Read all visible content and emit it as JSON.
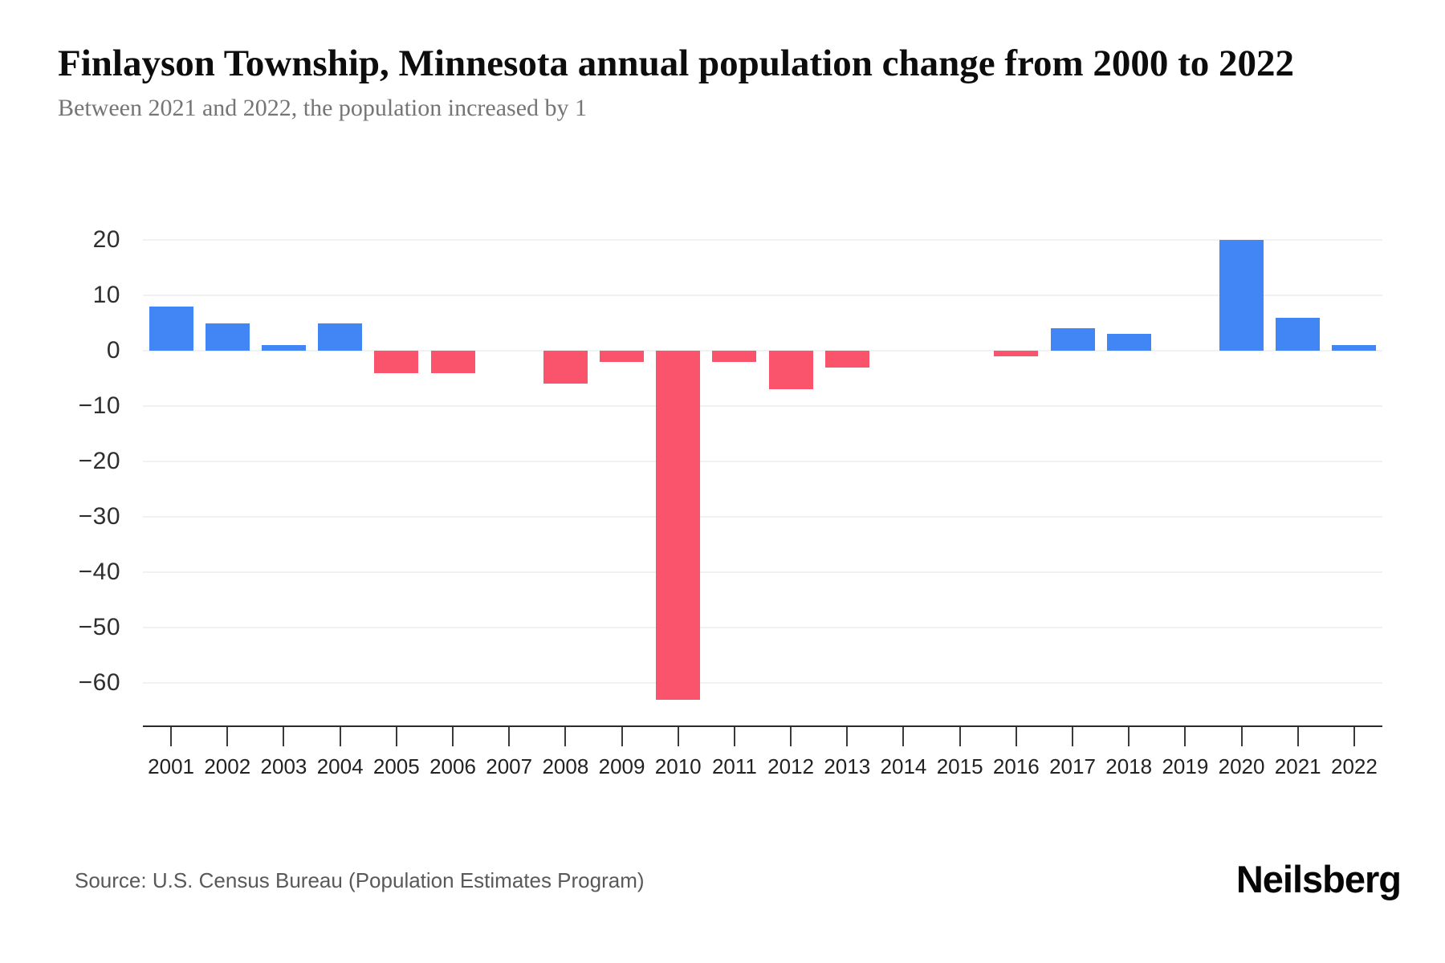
{
  "header": {
    "title": "Finlayson Township, Minnesota annual population change from 2000 to 2022",
    "subtitle": "Between 2021 and 2022, the population increased by 1"
  },
  "chart_data": {
    "type": "bar",
    "title": "Finlayson Township, Minnesota annual population change from 2000 to 2022",
    "categories": [
      "2001",
      "2002",
      "2003",
      "2004",
      "2005",
      "2006",
      "2007",
      "2008",
      "2009",
      "2010",
      "2011",
      "2012",
      "2013",
      "2014",
      "2015",
      "2016",
      "2017",
      "2018",
      "2019",
      "2020",
      "2021",
      "2022"
    ],
    "values": [
      8,
      5,
      1,
      5,
      -4,
      -4,
      0,
      -6,
      -2,
      -63,
      -2,
      -7,
      -3,
      0,
      0,
      -1,
      4,
      3,
      0,
      20,
      6,
      1
    ],
    "xlabel": "",
    "ylabel": "",
    "yticks": [
      20,
      10,
      0,
      -10,
      -20,
      -30,
      -40,
      -50,
      -60
    ],
    "ylim": [
      -68,
      22
    ],
    "grid": true,
    "legend_position": "none",
    "colors": {
      "positive": "#4285F4",
      "negative": "#F9546B"
    }
  },
  "footer": {
    "source": "Source: U.S. Census Bureau (Population Estimates Program)",
    "brand": "Neilsberg"
  }
}
